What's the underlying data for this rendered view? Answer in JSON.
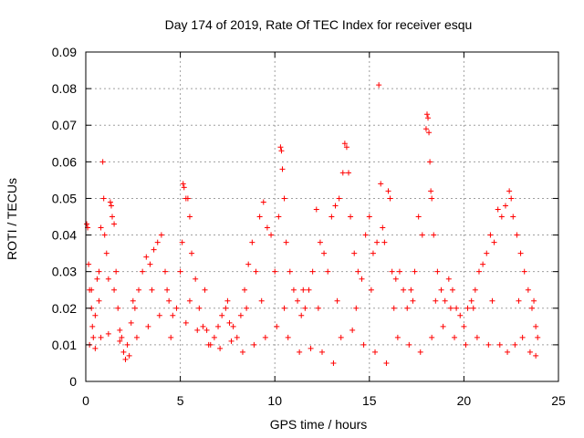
{
  "chart_data": {
    "type": "scatter",
    "title": "Day 174 of 2019, Rate Of TEC Index for receiver esqu",
    "xlabel": "GPS time / hours",
    "ylabel": "ROTI / TECUs",
    "xlim": [
      0,
      25
    ],
    "ylim": [
      0,
      0.09
    ],
    "x_ticks": [
      0,
      5,
      10,
      15,
      20,
      25
    ],
    "y_ticks": [
      0,
      0.01,
      0.02,
      0.03,
      0.04,
      0.05,
      0.06,
      0.07,
      0.08,
      0.09
    ],
    "x_tick_labels": [
      "0",
      "5",
      "10",
      "15",
      "20",
      "25"
    ],
    "y_tick_labels": [
      "0",
      "0.01",
      "0.02",
      "0.03",
      "0.04",
      "0.05",
      "0.06",
      "0.07",
      "0.08",
      "0.09"
    ],
    "grid": true,
    "marker": "+",
    "color": "#ff0000",
    "series": [
      {
        "name": "ROTI",
        "points": [
          [
            0.05,
            0.043
          ],
          [
            0.1,
            0.042
          ],
          [
            0.15,
            0.032
          ],
          [
            0.2,
            0.025
          ],
          [
            0.3,
            0.02
          ],
          [
            0.35,
            0.015
          ],
          [
            0.4,
            0.012
          ],
          [
            0.5,
            0.018
          ],
          [
            0.6,
            0.028
          ],
          [
            0.7,
            0.022
          ],
          [
            0.8,
            0.042
          ],
          [
            0.9,
            0.06
          ],
          [
            0.95,
            0.05
          ],
          [
            1.0,
            0.04
          ],
          [
            1.1,
            0.035
          ],
          [
            1.2,
            0.028
          ],
          [
            1.3,
            0.049
          ],
          [
            1.35,
            0.048
          ],
          [
            1.4,
            0.045
          ],
          [
            1.5,
            0.043
          ],
          [
            1.6,
            0.03
          ],
          [
            1.7,
            0.02
          ],
          [
            1.8,
            0.014
          ],
          [
            1.9,
            0.012
          ],
          [
            2.0,
            0.008
          ],
          [
            2.1,
            0.006
          ],
          [
            2.2,
            0.01
          ],
          [
            2.4,
            0.016
          ],
          [
            2.6,
            0.02
          ],
          [
            2.8,
            0.025
          ],
          [
            3.0,
            0.03
          ],
          [
            3.2,
            0.034
          ],
          [
            3.4,
            0.032
          ],
          [
            3.6,
            0.036
          ],
          [
            3.8,
            0.038
          ],
          [
            4.0,
            0.04
          ],
          [
            4.2,
            0.03
          ],
          [
            4.4,
            0.022
          ],
          [
            4.6,
            0.018
          ],
          [
            4.8,
            0.02
          ],
          [
            5.0,
            0.03
          ],
          [
            5.1,
            0.038
          ],
          [
            5.15,
            0.054
          ],
          [
            5.2,
            0.053
          ],
          [
            5.3,
            0.05
          ],
          [
            5.4,
            0.05
          ],
          [
            5.5,
            0.045
          ],
          [
            5.6,
            0.035
          ],
          [
            5.8,
            0.028
          ],
          [
            6.0,
            0.02
          ],
          [
            6.2,
            0.015
          ],
          [
            6.4,
            0.014
          ],
          [
            6.6,
            0.01
          ],
          [
            6.8,
            0.012
          ],
          [
            7.0,
            0.015
          ],
          [
            7.2,
            0.018
          ],
          [
            7.4,
            0.02
          ],
          [
            7.6,
            0.016
          ],
          [
            7.8,
            0.015
          ],
          [
            8.0,
            0.012
          ],
          [
            8.2,
            0.018
          ],
          [
            8.4,
            0.025
          ],
          [
            8.6,
            0.032
          ],
          [
            8.8,
            0.038
          ],
          [
            9.0,
            0.03
          ],
          [
            9.2,
            0.045
          ],
          [
            9.4,
            0.049
          ],
          [
            9.6,
            0.042
          ],
          [
            9.8,
            0.04
          ],
          [
            10.0,
            0.03
          ],
          [
            10.2,
            0.045
          ],
          [
            10.3,
            0.064
          ],
          [
            10.35,
            0.063
          ],
          [
            10.4,
            0.058
          ],
          [
            10.5,
            0.05
          ],
          [
            10.6,
            0.038
          ],
          [
            10.8,
            0.03
          ],
          [
            11.0,
            0.025
          ],
          [
            11.2,
            0.022
          ],
          [
            11.4,
            0.018
          ],
          [
            11.6,
            0.02
          ],
          [
            11.8,
            0.025
          ],
          [
            12.0,
            0.03
          ],
          [
            12.2,
            0.047
          ],
          [
            12.4,
            0.038
          ],
          [
            12.6,
            0.035
          ],
          [
            12.8,
            0.03
          ],
          [
            13.0,
            0.045
          ],
          [
            13.2,
            0.048
          ],
          [
            13.4,
            0.05
          ],
          [
            13.6,
            0.057
          ],
          [
            13.7,
            0.065
          ],
          [
            13.8,
            0.064
          ],
          [
            13.9,
            0.057
          ],
          [
            14.0,
            0.045
          ],
          [
            14.2,
            0.035
          ],
          [
            14.4,
            0.03
          ],
          [
            14.6,
            0.028
          ],
          [
            14.8,
            0.04
          ],
          [
            15.0,
            0.045
          ],
          [
            15.2,
            0.035
          ],
          [
            15.4,
            0.038
          ],
          [
            15.5,
            0.081
          ],
          [
            15.6,
            0.054
          ],
          [
            15.7,
            0.042
          ],
          [
            15.8,
            0.038
          ],
          [
            16.0,
            0.052
          ],
          [
            16.1,
            0.05
          ],
          [
            16.2,
            0.03
          ],
          [
            16.4,
            0.028
          ],
          [
            16.6,
            0.03
          ],
          [
            16.8,
            0.025
          ],
          [
            17.0,
            0.02
          ],
          [
            17.2,
            0.025
          ],
          [
            17.4,
            0.03
          ],
          [
            17.6,
            0.045
          ],
          [
            17.8,
            0.04
          ],
          [
            18.0,
            0.069
          ],
          [
            18.05,
            0.073
          ],
          [
            18.1,
            0.072
          ],
          [
            18.15,
            0.068
          ],
          [
            18.2,
            0.06
          ],
          [
            18.25,
            0.052
          ],
          [
            18.3,
            0.05
          ],
          [
            18.4,
            0.04
          ],
          [
            18.6,
            0.03
          ],
          [
            18.8,
            0.025
          ],
          [
            19.0,
            0.022
          ],
          [
            19.2,
            0.028
          ],
          [
            19.4,
            0.025
          ],
          [
            19.6,
            0.02
          ],
          [
            19.8,
            0.018
          ],
          [
            20.0,
            0.015
          ],
          [
            20.2,
            0.02
          ],
          [
            20.4,
            0.022
          ],
          [
            20.6,
            0.025
          ],
          [
            20.8,
            0.03
          ],
          [
            21.0,
            0.032
          ],
          [
            21.2,
            0.035
          ],
          [
            21.4,
            0.04
          ],
          [
            21.6,
            0.038
          ],
          [
            21.8,
            0.047
          ],
          [
            22.0,
            0.045
          ],
          [
            22.2,
            0.048
          ],
          [
            22.4,
            0.052
          ],
          [
            22.5,
            0.05
          ],
          [
            22.6,
            0.045
          ],
          [
            22.8,
            0.04
          ],
          [
            23.0,
            0.035
          ],
          [
            23.2,
            0.03
          ],
          [
            23.4,
            0.025
          ],
          [
            23.6,
            0.02
          ],
          [
            23.8,
            0.015
          ],
          [
            23.9,
            0.012
          ],
          [
            0.2,
            0.01
          ],
          [
            0.5,
            0.009
          ],
          [
            0.8,
            0.012
          ],
          [
            1.2,
            0.013
          ],
          [
            1.8,
            0.011
          ],
          [
            2.3,
            0.007
          ],
          [
            2.7,
            0.012
          ],
          [
            3.3,
            0.015
          ],
          [
            3.9,
            0.018
          ],
          [
            4.5,
            0.012
          ],
          [
            5.3,
            0.016
          ],
          [
            5.9,
            0.014
          ],
          [
            6.5,
            0.01
          ],
          [
            7.1,
            0.009
          ],
          [
            7.7,
            0.011
          ],
          [
            8.3,
            0.008
          ],
          [
            8.9,
            0.01
          ],
          [
            9.5,
            0.012
          ],
          [
            10.1,
            0.015
          ],
          [
            10.7,
            0.012
          ],
          [
            11.3,
            0.008
          ],
          [
            11.9,
            0.009
          ],
          [
            12.5,
            0.008
          ],
          [
            13.1,
            0.005
          ],
          [
            13.5,
            0.012
          ],
          [
            14.1,
            0.014
          ],
          [
            14.7,
            0.01
          ],
          [
            15.3,
            0.008
          ],
          [
            15.9,
            0.005
          ],
          [
            16.5,
            0.012
          ],
          [
            17.1,
            0.01
          ],
          [
            17.7,
            0.008
          ],
          [
            18.3,
            0.012
          ],
          [
            18.9,
            0.015
          ],
          [
            19.5,
            0.012
          ],
          [
            20.1,
            0.01
          ],
          [
            20.7,
            0.012
          ],
          [
            21.3,
            0.01
          ],
          [
            21.9,
            0.01
          ],
          [
            22.3,
            0.008
          ],
          [
            22.7,
            0.01
          ],
          [
            23.1,
            0.012
          ],
          [
            23.5,
            0.008
          ],
          [
            23.8,
            0.007
          ],
          [
            0.3,
            0.025
          ],
          [
            0.7,
            0.03
          ],
          [
            1.5,
            0.025
          ],
          [
            2.5,
            0.022
          ],
          [
            3.5,
            0.025
          ],
          [
            4.3,
            0.025
          ],
          [
            5.5,
            0.022
          ],
          [
            6.3,
            0.025
          ],
          [
            7.5,
            0.022
          ],
          [
            8.5,
            0.02
          ],
          [
            9.3,
            0.022
          ],
          [
            10.5,
            0.02
          ],
          [
            11.5,
            0.025
          ],
          [
            12.3,
            0.02
          ],
          [
            13.3,
            0.022
          ],
          [
            14.3,
            0.02
          ],
          [
            15.1,
            0.025
          ],
          [
            16.3,
            0.02
          ],
          [
            17.3,
            0.022
          ],
          [
            18.5,
            0.022
          ],
          [
            19.3,
            0.02
          ],
          [
            20.5,
            0.02
          ],
          [
            21.5,
            0.022
          ],
          [
            22.9,
            0.022
          ],
          [
            23.7,
            0.022
          ]
        ]
      }
    ]
  }
}
